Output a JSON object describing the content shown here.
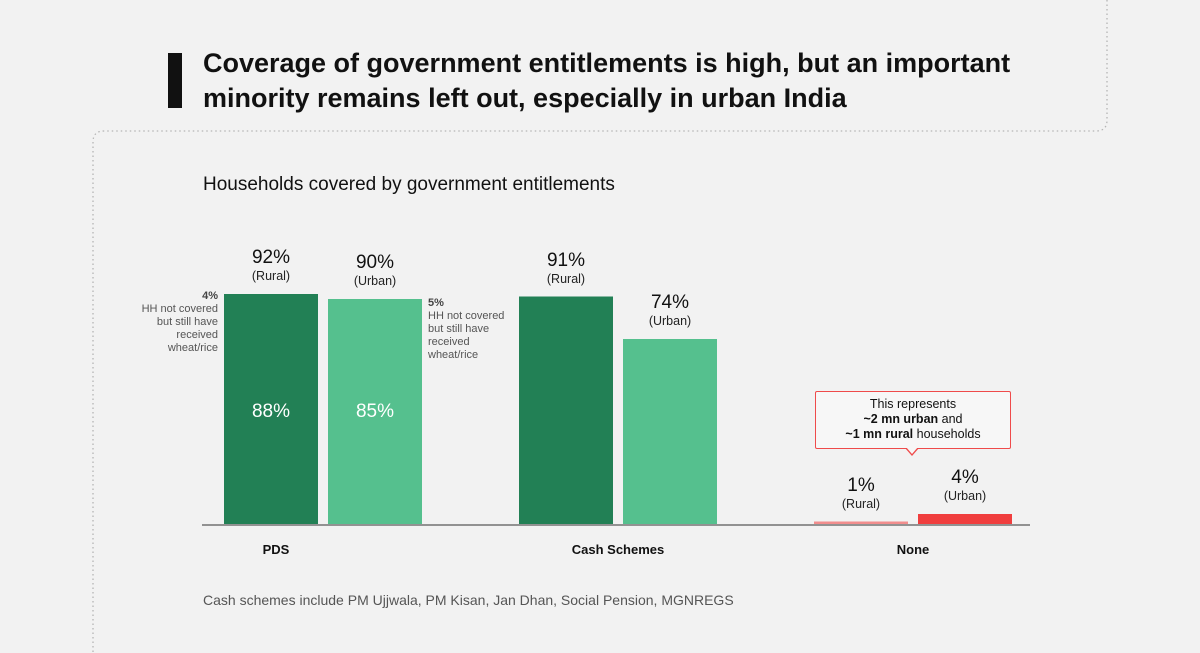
{
  "title": "Coverage of government entitlements is high, but an important minority remains left out, especially in urban India",
  "subtitle": "Households covered by government entitlements",
  "footnote": "Cash schemes include PM Ujjwala, PM Kisan, Jan Dhan, Social Pension, MGNREGS",
  "colors": {
    "rural": "#228055",
    "urban": "#55c08e",
    "none_rural": "#f28e8e",
    "none_urban": "#f03e3e",
    "callout_border": "#ef4b4b"
  },
  "chart_data": {
    "type": "bar",
    "categories": [
      "PDS",
      "Cash Schemes",
      "None"
    ],
    "ylim": [
      0,
      100
    ],
    "series": [
      {
        "name": "Rural",
        "values": [
          92,
          91,
          1
        ],
        "labels": [
          "92%",
          "91%",
          "1%"
        ],
        "sublabels": [
          "(Rural)",
          "(Rural)",
          "(Rural)"
        ]
      },
      {
        "name": "Urban",
        "values": [
          90,
          74,
          4
        ],
        "labels": [
          "90%",
          "74%",
          "4%"
        ],
        "sublabels": [
          "(Urban)",
          "(Urban)",
          "(Urban)"
        ]
      }
    ],
    "pds_breakdown": {
      "rural": {
        "covered": 88,
        "covered_label": "88%",
        "not_covered_but_received": 4,
        "note_value": "4%",
        "note_text": "HH not covered but still have received wheat/rice"
      },
      "urban": {
        "covered": 85,
        "covered_label": "85%",
        "not_covered_but_received": 5,
        "note_value": "5%",
        "note_text": "HH not covered but still have received wheat/rice"
      }
    },
    "callout": {
      "line1": "This represents",
      "line2_bold": "~2 mn urban",
      "line2_rest": " and",
      "line3_bold": "~1 mn rural",
      "line3_rest": " households"
    },
    "grid": false
  }
}
